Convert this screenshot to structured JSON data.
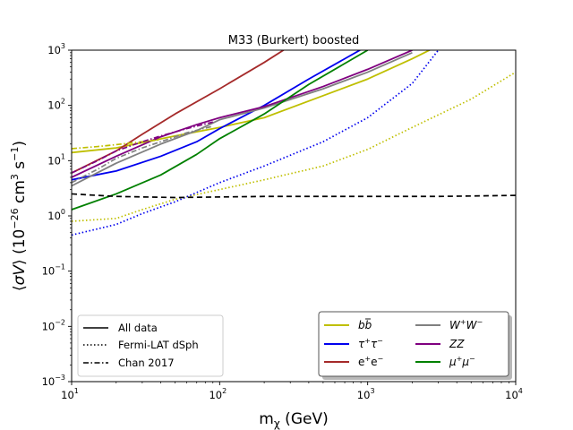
{
  "chart_data": {
    "type": "line",
    "title": "M33 (Burkert) boosted",
    "xlabel": "mχ (GeV)",
    "ylabel": "⟨σV⟩ (10⁻²⁶ cm³ s⁻¹)",
    "xscale": "log",
    "yscale": "log",
    "xlim": [
      10,
      10000
    ],
    "ylim": [
      0.001,
      1000
    ],
    "x_ticks": [
      {
        "value": 10,
        "base": "10",
        "exp": "1"
      },
      {
        "value": 100,
        "base": "10",
        "exp": "2"
      },
      {
        "value": 1000,
        "base": "10",
        "exp": "3"
      },
      {
        "value": 10000,
        "base": "10",
        "exp": "4"
      }
    ],
    "y_ticks": [
      {
        "value": 0.001,
        "base": "10",
        "exp": "−3"
      },
      {
        "value": 0.01,
        "base": "10",
        "exp": "−2"
      },
      {
        "value": 0.1,
        "base": "10",
        "exp": "−1"
      },
      {
        "value": 1,
        "base": "10",
        "exp": "0"
      },
      {
        "value": 10,
        "base": "10",
        "exp": "1"
      },
      {
        "value": 100,
        "base": "10",
        "exp": "2"
      },
      {
        "value": 1000,
        "base": "10",
        "exp": "3"
      }
    ],
    "series": [
      {
        "id": "bb-all",
        "channel": "bb",
        "style": "solid",
        "color": "#bfbf00",
        "x": [
          10,
          20,
          50,
          100,
          200,
          500,
          1000,
          2000,
          3000
        ],
        "y": [
          14,
          17,
          28,
          40,
          60,
          150,
          300,
          700,
          1200
        ]
      },
      {
        "id": "tau-all",
        "channel": "tautau",
        "style": "solid",
        "color": "#0000ee",
        "x": [
          10,
          20,
          40,
          70,
          100,
          200,
          400,
          1000
        ],
        "y": [
          4.5,
          6.5,
          12,
          22,
          38,
          100,
          300,
          1200
        ]
      },
      {
        "id": "ee-all",
        "channel": "ee",
        "style": "solid",
        "color": "#a52a2a",
        "x": [
          10,
          20,
          30,
          50,
          100,
          200,
          300
        ],
        "y": [
          6,
          15,
          30,
          70,
          200,
          600,
          1200
        ]
      },
      {
        "id": "ww-all",
        "channel": "ww",
        "style": "solid",
        "color": "#808080",
        "x": [
          10,
          20,
          40,
          70,
          100,
          200,
          500,
          1000,
          2000
        ],
        "y": [
          3.5,
          9,
          20,
          35,
          55,
          90,
          200,
          400,
          900
        ]
      },
      {
        "id": "zz-all",
        "channel": "zz",
        "style": "solid",
        "color": "#800080",
        "x": [
          10,
          20,
          40,
          70,
          100,
          200,
          500,
          1000,
          2000
        ],
        "y": [
          5,
          12,
          27,
          45,
          60,
          95,
          220,
          450,
          1000
        ]
      },
      {
        "id": "mumu-all",
        "channel": "mumu",
        "style": "solid",
        "color": "#008000",
        "x": [
          10,
          20,
          40,
          70,
          100,
          200,
          400,
          1000
        ],
        "y": [
          1.3,
          2.5,
          5.5,
          13,
          25,
          70,
          240,
          1000
        ]
      },
      {
        "id": "bb-fermi",
        "channel": "bb",
        "style": "dotted",
        "color": "#bfbf00",
        "x": [
          10,
          20,
          30,
          50,
          100,
          200,
          500,
          1000,
          2000,
          5000,
          10000
        ],
        "y": [
          0.8,
          0.9,
          1.3,
          2.0,
          3.0,
          4.5,
          8,
          16,
          40,
          130,
          400
        ]
      },
      {
        "id": "tau-fermi",
        "channel": "tautau",
        "style": "dotted",
        "color": "#0000ee",
        "x": [
          10,
          20,
          30,
          50,
          100,
          200,
          500,
          1000,
          2000,
          3000
        ],
        "y": [
          0.45,
          0.7,
          1.1,
          1.8,
          4,
          8,
          22,
          60,
          250,
          1000
        ]
      },
      {
        "id": "bb-chan",
        "channel": "bb",
        "style": "dashdot",
        "color": "#bfbf00",
        "x": [
          10,
          15,
          20,
          30,
          40
        ],
        "y": [
          16.5,
          18,
          19.5,
          22,
          24
        ]
      },
      {
        "id": "ww-chan",
        "channel": "ww",
        "style": "dashdot",
        "color": "#808080",
        "x": [
          10,
          15,
          20,
          30,
          40,
          60,
          90
        ],
        "y": [
          4,
          7,
          11,
          17,
          22,
          32,
          42
        ]
      },
      {
        "id": "zz-chan",
        "channel": "zz",
        "style": "dashdot",
        "color": "#800080",
        "x": [
          10,
          15,
          20,
          30,
          40,
          60,
          90
        ],
        "y": [
          6,
          10,
          15,
          22,
          28,
          38,
          50
        ]
      },
      {
        "id": "boosted-limit",
        "channel": "none",
        "style": "dashed",
        "color": "#000000",
        "x": [
          10,
          20,
          50,
          100,
          200,
          500,
          1000,
          3000,
          10000
        ],
        "y": [
          2.5,
          2.25,
          2.15,
          2.2,
          2.25,
          2.25,
          2.25,
          2.25,
          2.35
        ]
      }
    ],
    "legend_styles": {
      "position": "lower-left",
      "entries": [
        {
          "label": "All data",
          "style": "solid"
        },
        {
          "label": "Fermi-LAT dSph",
          "style": "dotted"
        },
        {
          "label": "Chan 2017",
          "style": "dashdot"
        }
      ]
    },
    "legend_channels": {
      "position": "lower-right",
      "entries": [
        {
          "label": "b",
          "label_bar": "b",
          "math": true,
          "color": "#bfbf00"
        },
        {
          "label": "τ",
          "sup1": "+",
          "label2": "τ",
          "sup2": "−",
          "math": true,
          "color": "#0000ee"
        },
        {
          "label": "e",
          "sup1": "+",
          "label2": "e",
          "sup2": "−",
          "math": false,
          "color": "#a52a2a"
        },
        {
          "label": "W",
          "sup1": "+",
          "label2": "W",
          "sup2": "−",
          "math": true,
          "color": "#808080"
        },
        {
          "label": "ZZ",
          "math": true,
          "color": "#800080"
        },
        {
          "label": "μ",
          "sup1": "+",
          "label2": "μ",
          "sup2": "−",
          "math": true,
          "color": "#008000"
        }
      ]
    }
  }
}
